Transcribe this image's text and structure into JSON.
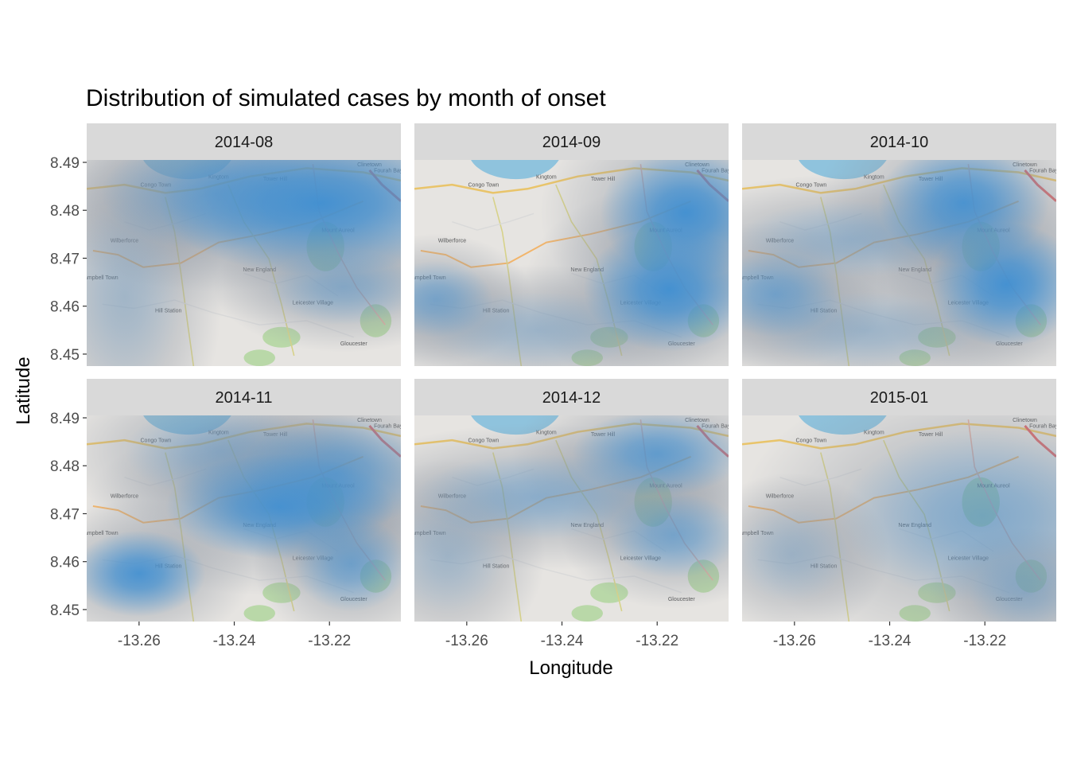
{
  "chart_data": {
    "type": "faceted density map",
    "title": "Distribution of simulated cases by month of onset",
    "xlabel": "Longitude",
    "ylabel": "Latitude",
    "xlim": [
      -13.271,
      -13.205
    ],
    "ylim": [
      8.4475,
      8.4905
    ],
    "x_ticks": [
      -13.26,
      -13.24,
      -13.22
    ],
    "x_tick_labels": [
      "-13.26",
      "-13.24",
      "-13.22"
    ],
    "y_ticks": [
      8.45,
      8.46,
      8.47,
      8.48,
      8.49
    ],
    "y_tick_labels": [
      "8.45",
      "8.46",
      "8.47",
      "8.48",
      "8.49"
    ],
    "fill_color": "#3f8fd2",
    "basemap_labels": [
      "Tower Hill",
      "Congo Town",
      "Kingtom",
      "Fourah Bay",
      "Wilberforce",
      "New England",
      "Hill Station",
      "Leicester Village",
      "Gloucester",
      "Campbell Town",
      "Mount Aureol",
      "Clinetown"
    ],
    "panels": [
      {
        "label": "2014-08",
        "hotspots": [
          {
            "lon": -13.222,
            "lat": 8.4815,
            "sx": 0.017,
            "sy": 0.0075,
            "weight": 1.0
          },
          {
            "lon": -13.244,
            "lat": 8.4835,
            "sx": 0.012,
            "sy": 0.006,
            "weight": 0.55
          },
          {
            "lon": -13.217,
            "lat": 8.464,
            "sx": 0.008,
            "sy": 0.004,
            "weight": 0.45
          },
          {
            "lon": -13.263,
            "lat": 8.462,
            "sx": 0.006,
            "sy": 0.01,
            "weight": 0.25
          }
        ]
      },
      {
        "label": "2014-09",
        "hotspots": [
          {
            "lon": -13.214,
            "lat": 8.4795,
            "sx": 0.009,
            "sy": 0.007,
            "weight": 0.95
          },
          {
            "lon": -13.2175,
            "lat": 8.4635,
            "sx": 0.009,
            "sy": 0.0065,
            "weight": 0.95
          },
          {
            "lon": -13.2665,
            "lat": 8.4615,
            "sx": 0.006,
            "sy": 0.004,
            "weight": 0.55
          },
          {
            "lon": -13.245,
            "lat": 8.455,
            "sx": 0.012,
            "sy": 0.004,
            "weight": 0.3
          }
        ]
      },
      {
        "label": "2014-10",
        "hotspots": [
          {
            "lon": -13.2245,
            "lat": 8.4815,
            "sx": 0.009,
            "sy": 0.0065,
            "weight": 0.9
          },
          {
            "lon": -13.2155,
            "lat": 8.4645,
            "sx": 0.008,
            "sy": 0.0065,
            "weight": 1.0
          },
          {
            "lon": -13.264,
            "lat": 8.4625,
            "sx": 0.007,
            "sy": 0.0045,
            "weight": 0.6
          },
          {
            "lon": -13.248,
            "lat": 8.474,
            "sx": 0.012,
            "sy": 0.004,
            "weight": 0.35
          },
          {
            "lon": -13.245,
            "lat": 8.455,
            "sx": 0.012,
            "sy": 0.004,
            "weight": 0.3
          }
        ]
      },
      {
        "label": "2014-11",
        "hotspots": [
          {
            "lon": -13.26,
            "lat": 8.4575,
            "sx": 0.007,
            "sy": 0.0045,
            "weight": 0.75
          },
          {
            "lon": -13.2305,
            "lat": 8.4715,
            "sx": 0.012,
            "sy": 0.0055,
            "weight": 0.75
          },
          {
            "lon": -13.2185,
            "lat": 8.4785,
            "sx": 0.01,
            "sy": 0.006,
            "weight": 0.6
          },
          {
            "lon": -13.2155,
            "lat": 8.4595,
            "sx": 0.006,
            "sy": 0.005,
            "weight": 0.55
          },
          {
            "lon": -13.243,
            "lat": 8.483,
            "sx": 0.01,
            "sy": 0.005,
            "weight": 0.35
          }
        ]
      },
      {
        "label": "2014-12",
        "hotspots": [
          {
            "lon": -13.22,
            "lat": 8.4825,
            "sx": 0.009,
            "sy": 0.0045,
            "weight": 0.55
          },
          {
            "lon": -13.2165,
            "lat": 8.4655,
            "sx": 0.007,
            "sy": 0.0045,
            "weight": 0.45
          },
          {
            "lon": -13.245,
            "lat": 8.4735,
            "sx": 0.013,
            "sy": 0.0045,
            "weight": 0.35
          },
          {
            "lon": -13.264,
            "lat": 8.461,
            "sx": 0.006,
            "sy": 0.006,
            "weight": 0.2
          }
        ]
      },
      {
        "label": "2015-01",
        "hotspots": [
          {
            "lon": -13.2205,
            "lat": 8.4695,
            "sx": 0.015,
            "sy": 0.009,
            "weight": 0.3
          },
          {
            "lon": -13.2115,
            "lat": 8.4535,
            "sx": 0.006,
            "sy": 0.004,
            "weight": 0.2
          },
          {
            "lon": -13.2605,
            "lat": 8.4615,
            "sx": 0.006,
            "sy": 0.005,
            "weight": 0.15
          }
        ]
      }
    ]
  }
}
